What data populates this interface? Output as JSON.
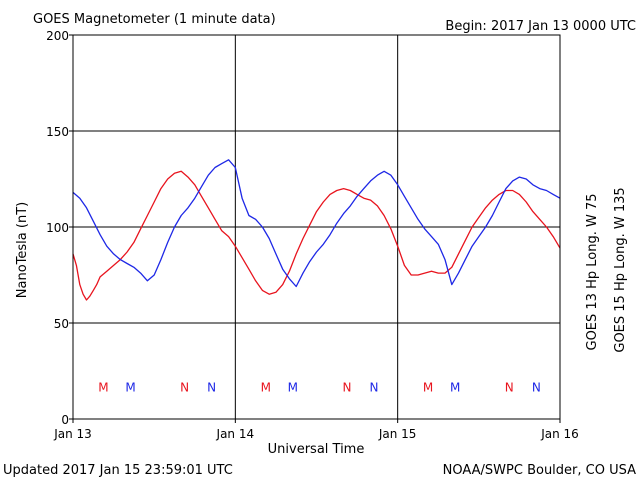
{
  "chart_data": {
    "type": "line",
    "title": "GOES Magnetometer (1 minute data)",
    "begin": "Begin:  2017 Jan 13 0000 UTC",
    "xlabel": "Universal Time",
    "ylabel": "NanoTesla (nT)",
    "ylim": [
      0,
      200
    ],
    "yticks": [
      0,
      50,
      100,
      150,
      200
    ],
    "xlim_hours": [
      0,
      72
    ],
    "xticks": [
      {
        "hour": 0,
        "label": "Jan 13"
      },
      {
        "hour": 24,
        "label": "Jan 14"
      },
      {
        "hour": 48,
        "label": "Jan 15"
      },
      {
        "hour": 72,
        "label": "Jan 16"
      }
    ],
    "grid": true,
    "series": [
      {
        "name": "GOES 13 Hp  Long. W 75",
        "color": "#e8141e",
        "points": [
          [
            0,
            86
          ],
          [
            0.5,
            80
          ],
          [
            1,
            70
          ],
          [
            1.5,
            65
          ],
          [
            2,
            62
          ],
          [
            2.5,
            64
          ],
          [
            3,
            67
          ],
          [
            3.5,
            70
          ],
          [
            4,
            74
          ],
          [
            5,
            77
          ],
          [
            6,
            80
          ],
          [
            7,
            83
          ],
          [
            8,
            87
          ],
          [
            9,
            92
          ],
          [
            10,
            99
          ],
          [
            11,
            106
          ],
          [
            12,
            113
          ],
          [
            13,
            120
          ],
          [
            14,
            125
          ],
          [
            15,
            128
          ],
          [
            16,
            129
          ],
          [
            17,
            126
          ],
          [
            18,
            122
          ],
          [
            19,
            116
          ],
          [
            20,
            110
          ],
          [
            21,
            104
          ],
          [
            22,
            98
          ],
          [
            23,
            95
          ],
          [
            24,
            90
          ],
          [
            25,
            84
          ],
          [
            26,
            78
          ],
          [
            27,
            72
          ],
          [
            28,
            67
          ],
          [
            29,
            65
          ],
          [
            30,
            66
          ],
          [
            31,
            70
          ],
          [
            32,
            77
          ],
          [
            33,
            86
          ],
          [
            34,
            94
          ],
          [
            35,
            101
          ],
          [
            36,
            108
          ],
          [
            37,
            113
          ],
          [
            38,
            117
          ],
          [
            39,
            119
          ],
          [
            40,
            120
          ],
          [
            41,
            119
          ],
          [
            42,
            117
          ],
          [
            43,
            115
          ],
          [
            44,
            114
          ],
          [
            45,
            111
          ],
          [
            46,
            106
          ],
          [
            47,
            99
          ],
          [
            48,
            90
          ],
          [
            49,
            80
          ],
          [
            50,
            75
          ],
          [
            51,
            75
          ],
          [
            52,
            76
          ],
          [
            53,
            77
          ],
          [
            54,
            76
          ],
          [
            55,
            76
          ],
          [
            56,
            79
          ],
          [
            57,
            86
          ],
          [
            58,
            93
          ],
          [
            59,
            100
          ],
          [
            60,
            105
          ],
          [
            61,
            110
          ],
          [
            62,
            114
          ],
          [
            63,
            117
          ],
          [
            64,
            119
          ],
          [
            65,
            119
          ],
          [
            66,
            117
          ],
          [
            67,
            113
          ],
          [
            68,
            108
          ],
          [
            69,
            104
          ],
          [
            70,
            100
          ],
          [
            71,
            95
          ],
          [
            72,
            89
          ]
        ]
      },
      {
        "name": "GOES 15 Hp  Long. W 135",
        "color": "#1e28e6",
        "points": [
          [
            0,
            118
          ],
          [
            1,
            115
          ],
          [
            2,
            110
          ],
          [
            3,
            103
          ],
          [
            4,
            96
          ],
          [
            5,
            90
          ],
          [
            6,
            86
          ],
          [
            7,
            83
          ],
          [
            8,
            81
          ],
          [
            9,
            79
          ],
          [
            10,
            76
          ],
          [
            11,
            72
          ],
          [
            12,
            75
          ],
          [
            13,
            83
          ],
          [
            14,
            92
          ],
          [
            15,
            100
          ],
          [
            16,
            106
          ],
          [
            17,
            110
          ],
          [
            18,
            115
          ],
          [
            19,
            121
          ],
          [
            20,
            127
          ],
          [
            21,
            131
          ],
          [
            22,
            133
          ],
          [
            23,
            135
          ],
          [
            24,
            131
          ],
          [
            25,
            115
          ],
          [
            26,
            106
          ],
          [
            27,
            104
          ],
          [
            28,
            100
          ],
          [
            29,
            94
          ],
          [
            30,
            86
          ],
          [
            31,
            78
          ],
          [
            32,
            73
          ],
          [
            33,
            69
          ],
          [
            34,
            76
          ],
          [
            35,
            82
          ],
          [
            36,
            87
          ],
          [
            37,
            91
          ],
          [
            38,
            96
          ],
          [
            39,
            102
          ],
          [
            40,
            107
          ],
          [
            41,
            111
          ],
          [
            42,
            116
          ],
          [
            43,
            120
          ],
          [
            44,
            124
          ],
          [
            45,
            127
          ],
          [
            46,
            129
          ],
          [
            47,
            127
          ],
          [
            48,
            122
          ],
          [
            49,
            116
          ],
          [
            50,
            110
          ],
          [
            51,
            104
          ],
          [
            52,
            99
          ],
          [
            53,
            95
          ],
          [
            54,
            91
          ],
          [
            55,
            83
          ],
          [
            56,
            70
          ],
          [
            57,
            76
          ],
          [
            58,
            83
          ],
          [
            59,
            90
          ],
          [
            60,
            95
          ],
          [
            61,
            100
          ],
          [
            62,
            106
          ],
          [
            63,
            113
          ],
          [
            64,
            120
          ],
          [
            65,
            124
          ],
          [
            66,
            126
          ],
          [
            67,
            125
          ],
          [
            68,
            122
          ],
          [
            69,
            120
          ],
          [
            70,
            119
          ],
          [
            71,
            117
          ],
          [
            72,
            115
          ]
        ]
      }
    ],
    "markers": [
      {
        "label": "M",
        "hour": 4.5,
        "color": "#e8141e"
      },
      {
        "label": "M",
        "hour": 8.5,
        "color": "#1e28e6"
      },
      {
        "label": "N",
        "hour": 16.5,
        "color": "#e8141e"
      },
      {
        "label": "N",
        "hour": 20.5,
        "color": "#1e28e6"
      },
      {
        "label": "M",
        "hour": 28.5,
        "color": "#e8141e"
      },
      {
        "label": "M",
        "hour": 32.5,
        "color": "#1e28e6"
      },
      {
        "label": "N",
        "hour": 40.5,
        "color": "#e8141e"
      },
      {
        "label": "N",
        "hour": 44.5,
        "color": "#1e28e6"
      },
      {
        "label": "M",
        "hour": 52.5,
        "color": "#e8141e"
      },
      {
        "label": "M",
        "hour": 56.5,
        "color": "#1e28e6"
      },
      {
        "label": "N",
        "hour": 64.5,
        "color": "#e8141e"
      },
      {
        "label": "N",
        "hour": 68.5,
        "color": "#1e28e6"
      }
    ],
    "marker_level_nT": 17
  },
  "footer": {
    "updated": "Updated 2017 Jan 15 23:59:01 UTC",
    "source": "NOAA/SWPC Boulder, CO USA"
  }
}
